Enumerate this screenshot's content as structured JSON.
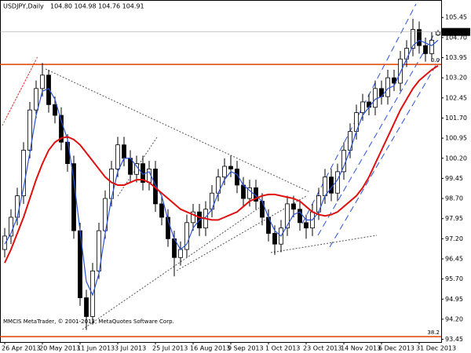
{
  "chart_data": {
    "type": "candlestick",
    "header": {
      "symbol": "USDJPY,Daily",
      "quote": "104.80 104.98 104.76 104.91"
    },
    "copyright": "MMCIS MetaTrader, © 2001-2013, MetaQuotes Software Corp.",
    "categories": [
      "26 Apr 2013",
      null,
      null,
      null,
      null,
      null,
      "20 May 2013",
      null,
      null,
      null,
      null,
      null,
      "11 Jun 2013",
      null,
      null,
      null,
      null,
      null,
      "3 Jul 2013",
      null,
      null,
      null,
      null,
      null,
      "25 Jul 2013",
      null,
      null,
      null,
      null,
      null,
      "16 Aug 2013",
      null,
      null,
      null,
      null,
      null,
      "9 Sep 2013",
      null,
      null,
      null,
      null,
      null,
      "1 Oct 2013",
      null,
      null,
      null,
      null,
      null,
      "23 Oct 2013",
      null,
      null,
      null,
      null,
      null,
      "14 Nov 2013",
      null,
      null,
      null,
      null,
      null,
      "6 Dec 2013",
      null,
      null,
      null,
      null,
      null,
      "31 Dec 2013",
      null,
      null,
      null
    ],
    "open": [
      96.8,
      97.3,
      98.0,
      98.8,
      100.5,
      102.0,
      102.8,
      103.3,
      102.2,
      101.8,
      100.8,
      100.0,
      97.5,
      95.0,
      94.3,
      96.0,
      97.5,
      98.7,
      99.8,
      100.7,
      100.2,
      99.6,
      100.0,
      99.3,
      99.8,
      98.5,
      98.0,
      97.2,
      96.5,
      96.8,
      97.8,
      98.2,
      97.6,
      98.3,
      98.9,
      99.5,
      99.9,
      99.8,
      99.2,
      98.7,
      99.1,
      98.6,
      98.0,
      97.4,
      97.0,
      97.6,
      98.5,
      98.3,
      97.8,
      97.6,
      98.2,
      98.8,
      99.5,
      98.9,
      99.7,
      100.5,
      101.2,
      101.9,
      102.3,
      102.1,
      102.8,
      102.5,
      103.2,
      103.0,
      103.9,
      104.3,
      105.0,
      104.4,
      104.1,
      104.8
    ],
    "high": [
      97.6,
      98.3,
      99.1,
      100.8,
      102.3,
      103.1,
      103.75,
      103.5,
      102.5,
      102.1,
      101.1,
      100.3,
      97.8,
      95.3,
      96.3,
      97.8,
      99.0,
      100.1,
      101.0,
      101.0,
      100.5,
      100.3,
      100.3,
      100.1,
      100.1,
      98.8,
      98.3,
      97.5,
      97.1,
      98.1,
      98.5,
      98.5,
      98.6,
      99.2,
      99.8,
      100.2,
      100.3,
      100.1,
      99.5,
      99.4,
      99.4,
      98.9,
      98.3,
      97.7,
      97.9,
      98.8,
      98.8,
      98.6,
      98.1,
      98.5,
      99.1,
      99.8,
      99.8,
      100.0,
      100.8,
      101.5,
      102.2,
      102.6,
      102.6,
      103.1,
      103.1,
      103.5,
      103.5,
      104.2,
      104.6,
      105.4,
      105.3,
      104.7,
      104.9,
      104.98
    ],
    "low": [
      96.5,
      97.0,
      97.7,
      98.5,
      100.2,
      101.7,
      102.5,
      101.9,
      101.5,
      100.5,
      99.7,
      97.2,
      94.7,
      93.8,
      94.0,
      95.7,
      97.2,
      98.4,
      99.5,
      99.9,
      99.3,
      99.3,
      99.0,
      99.0,
      98.2,
      97.7,
      96.9,
      95.8,
      96.2,
      96.5,
      97.5,
      97.3,
      97.3,
      98.0,
      98.6,
      99.2,
      99.5,
      98.9,
      98.4,
      98.4,
      98.3,
      97.7,
      97.1,
      96.6,
      96.7,
      97.3,
      98.0,
      97.5,
      97.2,
      97.3,
      97.9,
      98.5,
      98.6,
      98.6,
      99.4,
      100.2,
      100.9,
      101.6,
      101.8,
      101.8,
      102.2,
      102.2,
      102.7,
      102.7,
      103.6,
      104.0,
      104.1,
      103.8,
      103.8,
      104.76
    ],
    "close": [
      97.3,
      98.0,
      98.8,
      100.5,
      102.0,
      102.8,
      103.3,
      102.2,
      101.8,
      100.8,
      100.0,
      97.5,
      95.0,
      94.3,
      96.0,
      97.5,
      98.7,
      99.8,
      100.7,
      100.2,
      99.6,
      100.0,
      99.3,
      99.8,
      98.5,
      98.0,
      97.2,
      96.5,
      96.8,
      97.8,
      98.2,
      97.6,
      98.3,
      98.9,
      99.5,
      99.9,
      99.8,
      99.2,
      98.7,
      99.1,
      98.6,
      98.0,
      97.4,
      97.0,
      97.6,
      98.5,
      98.3,
      97.8,
      97.6,
      98.2,
      98.8,
      99.5,
      98.9,
      99.7,
      100.5,
      101.2,
      101.9,
      102.3,
      102.1,
      102.8,
      102.5,
      103.2,
      103.0,
      103.9,
      104.3,
      105.0,
      104.4,
      104.1,
      104.6,
      104.91
    ],
    "lines": [
      {
        "color": "#2a52d8",
        "values": [
          97.0,
          97.4,
          98.0,
          99.1,
          100.4,
          101.8,
          102.7,
          102.8,
          102.4,
          101.6,
          100.9,
          99.4,
          97.5,
          95.6,
          95.1,
          95.9,
          97.4,
          98.7,
          99.7,
          100.2,
          100.2,
          99.9,
          99.6,
          99.7,
          99.2,
          98.8,
          97.9,
          97.2,
          96.8,
          97.0,
          97.6,
          97.9,
          98.0,
          98.3,
          98.9,
          99.4,
          99.7,
          99.6,
          99.2,
          99.0,
          98.8,
          98.6,
          98.0,
          97.5,
          97.3,
          97.7,
          98.1,
          98.2,
          97.9,
          97.9,
          98.2,
          98.8,
          99.1,
          99.4,
          99.9,
          100.5,
          101.2,
          101.8,
          102.1,
          102.4,
          102.5,
          102.8,
          102.9,
          103.4,
          103.9,
          104.4,
          104.6,
          104.5,
          104.4,
          104.6
        ]
      },
      {
        "color": "#e01010",
        "values": [
          96.3,
          96.8,
          97.4,
          98.0,
          98.7,
          99.4,
          100.0,
          100.5,
          100.8,
          100.95,
          101.0,
          100.9,
          100.7,
          100.4,
          100.1,
          99.8,
          99.5,
          99.3,
          99.2,
          99.2,
          99.3,
          99.4,
          99.4,
          99.3,
          99.1,
          98.9,
          98.7,
          98.5,
          98.3,
          98.2,
          98.1,
          98.0,
          97.95,
          97.9,
          97.9,
          98.0,
          98.1,
          98.2,
          98.4,
          98.6,
          98.7,
          98.8,
          98.85,
          98.85,
          98.8,
          98.75,
          98.7,
          98.6,
          98.4,
          98.2,
          98.1,
          98.05,
          98.1,
          98.2,
          98.4,
          98.6,
          98.8,
          99.1,
          99.5,
          100.0,
          100.5,
          101.0,
          101.5,
          102.0,
          102.4,
          102.8,
          103.1,
          103.3,
          103.5,
          103.65
        ]
      }
    ],
    "levels": [
      {
        "label": "0.0",
        "value": 103.7,
        "color": "#e04000"
      },
      {
        "label": "38.2",
        "value": 93.55,
        "color": "#e04000"
      }
    ],
    "last_price": 104.91,
    "ylim": [
      93.35,
      106.1
    ],
    "yticks": [
      105.45,
      {
        "value": 104.7,
        "label": "104.70"
      },
      103.95,
      {
        "value": 103.2,
        "label": "103.20"
      },
      102.45,
      {
        "value": 101.7,
        "label": "101.70"
      },
      100.95,
      {
        "value": 100.2,
        "label": "100.20"
      },
      99.45,
      {
        "value": 98.7,
        "label": "98.70"
      },
      97.95,
      {
        "value": 97.2,
        "label": "97.20"
      },
      96.45,
      {
        "value": 95.7,
        "label": "95.70"
      },
      94.95,
      {
        "value": 94.2,
        "label": "94.20"
      },
      93.45
    ],
    "grid": false
  }
}
